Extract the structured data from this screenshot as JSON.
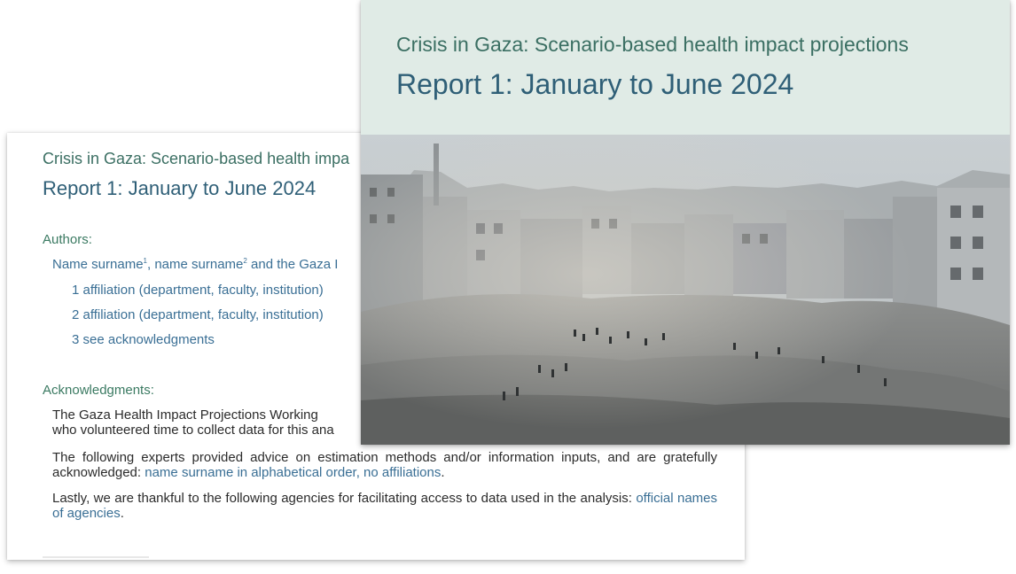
{
  "back_page": {
    "title": "Crisis in Gaza: Scenario-based health impa",
    "subtitle": "Report 1: January to June 2024",
    "authors": {
      "label": "Authors:",
      "name1": "Name surname",
      "sup1": "1",
      "sep1": ", name surname",
      "sup2": "2",
      "tail": " and the Gaza I",
      "affiliations": [
        "1 affiliation (department, faculty, institution)",
        "2 affiliation (department, faculty, institution)",
        "3 see acknowledgments"
      ]
    },
    "acknowledgments": {
      "label": "Acknowledgments:",
      "p1_line1": "The Gaza Health Impact Projections Working",
      "p1_line2": "who volunteered time to collect data for this ana",
      "p2_text": "The following experts provided advice on estimation methods and/or information inputs, and are gratefully acknowledged: ",
      "p2_link": "name surname in alphabetical order, no affiliations",
      "p2_end": ".",
      "p3_text": "Lastly, we are thankful to the following agencies for facilitating access to data used in the analysis: ",
      "p3_link": "official names of agencies",
      "p3_end": "."
    }
  },
  "front_page": {
    "title": "Crisis in Gaza: Scenario-based health impact projections",
    "subtitle": "Report 1: January to June 2024",
    "photo_icon": "destroyed-buildings-photo"
  },
  "colors": {
    "front_header_bg": "#e0ebe6",
    "title_green": "#3b6f63",
    "subtitle_blue": "#2f5f77",
    "link_blue": "#3a6f95"
  }
}
